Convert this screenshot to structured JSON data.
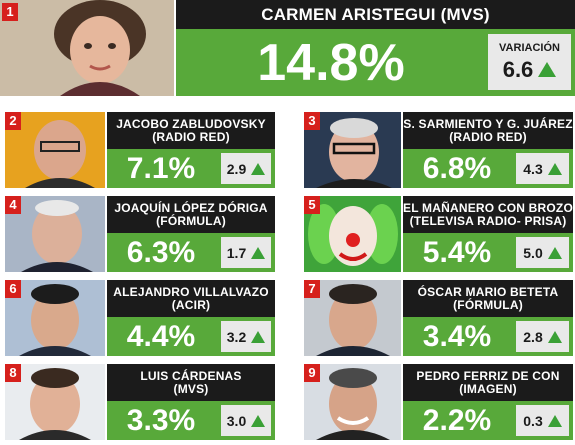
{
  "ranking": [
    {
      "rank": "1",
      "name": "CARMEN ARISTEGUI (MVS)",
      "share": "14.8%",
      "variation_label": "VARIACIÓN",
      "variation": "6.6"
    },
    {
      "rank": "2",
      "name_line1": "JACOBO ZABLUDOVSKY",
      "name_line2": "(RADIO RED)",
      "share": "7.1%",
      "variation": "2.9"
    },
    {
      "rank": "3",
      "name_line1": "S. SARMIENTO Y G. JUÁREZ",
      "name_line2": "(RADIO RED)",
      "share": "6.8%",
      "variation": "4.3"
    },
    {
      "rank": "4",
      "name_line1": "JOAQUÍN LÓPEZ DÓRIGA",
      "name_line2": "(FÓRMULA)",
      "share": "6.3%",
      "variation": "1.7"
    },
    {
      "rank": "5",
      "name_line1": "EL MAÑANERO CON BROZO",
      "name_line2": "(TELEVISA RADIO- PRISA)",
      "share": "5.4%",
      "variation": "5.0"
    },
    {
      "rank": "6",
      "name_line1": "ALEJANDRO VILLALVAZO",
      "name_line2": "(ACIR)",
      "share": "4.4%",
      "variation": "3.2"
    },
    {
      "rank": "7",
      "name_line1": "ÓSCAR MARIO BETETA",
      "name_line2": "(FÓRMULA)",
      "share": "3.4%",
      "variation": "2.8"
    },
    {
      "rank": "8",
      "name_line1": "LUIS CÁRDENAS",
      "name_line2": "(MVS)",
      "share": "3.3%",
      "variation": "3.0"
    },
    {
      "rank": "9",
      "name_line1": "PEDRO FERRIZ DE CON",
      "name_line2": "(IMAGEN)",
      "share": "2.2%",
      "variation": "0.3"
    }
  ],
  "colors": {
    "rank_red": "#d6201c",
    "name_black": "#1b1b1b",
    "share_green": "#58a93a",
    "variation_gray": "#e9e9e9",
    "arrow_green": "#3aa036"
  },
  "icons": {
    "trend": "up-triangle-icon",
    "portrait": "portrait-photo"
  }
}
